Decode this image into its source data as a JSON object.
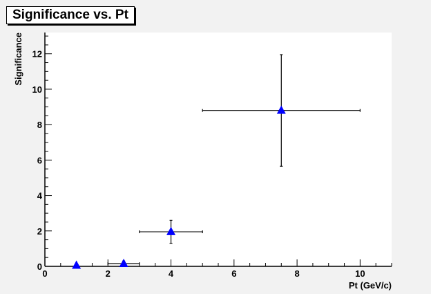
{
  "chart_data": {
    "type": "scatter",
    "title": "Significance vs. Pt",
    "xlabel": "Pt (GeV/c)",
    "ylabel": "Significance",
    "xlim": [
      0,
      11
    ],
    "ylim": [
      0,
      13.2
    ],
    "x_ticks": [
      "0",
      "2",
      "4",
      "6",
      "8",
      "10"
    ],
    "y_ticks": [
      "0",
      "2",
      "4",
      "6",
      "8",
      "10",
      "12"
    ],
    "grid": false,
    "legend": "none",
    "marker": "triangle-up",
    "colors": {
      "marker": "#0000ff",
      "frame_bg": "#f2f2f2",
      "plot_bg": "#ffffff"
    },
    "series": [
      {
        "x": [
          1.0,
          2.5,
          4.0,
          7.5
        ],
        "y": [
          0.05,
          0.15,
          1.95,
          8.8
        ],
        "x_err": [
          0.0,
          0.5,
          1.0,
          2.5
        ],
        "y_err": [
          0.0,
          0.15,
          0.65,
          3.15
        ]
      }
    ]
  }
}
